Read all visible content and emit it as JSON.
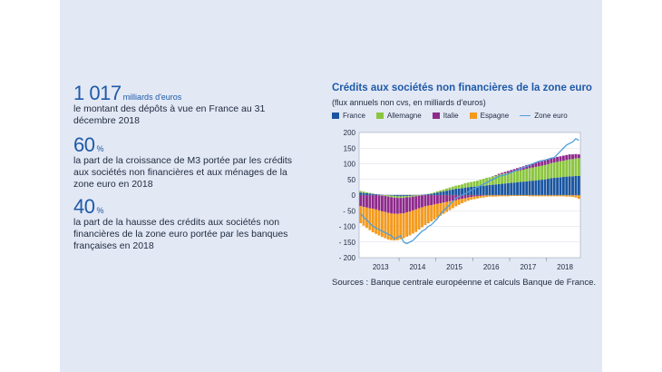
{
  "stats": [
    {
      "big": "1 017",
      "unit": "milliards d'euros",
      "desc": "le montant des dépôts à vue en France au 31 décembre 2018"
    },
    {
      "big": "60",
      "unit": "%",
      "desc": "la part de la croissance de M3 portée par les crédits aux sociétés non financières et aux ménages de la zone euro en 2018"
    },
    {
      "big": "40",
      "unit": "%",
      "desc": "la part de la hausse des crédits aux sociétés non financières de la zone euro portée par les banques françaises en 2018"
    }
  ],
  "source": "Sources : Banque centrale européenne et calculs Banque de France.",
  "colors": {
    "France": "#1a56a0",
    "Allemagne": "#8bc53f",
    "Italie": "#8e2a8c",
    "Espagne": "#f39a1e",
    "Zone euro": "#4f9fd9"
  },
  "chart_data": {
    "type": "bar",
    "title": "Crédits aux sociétés non financières de la zone euro",
    "subtitle": "(flux annuels non cvs, en milliards d'euros)",
    "ylim": [
      -200,
      200
    ],
    "yticks": [
      "200",
      "150",
      "100",
      "50",
      "0",
      "- 50",
      "- 100",
      "- 150",
      "- 200"
    ],
    "xticks": [
      "2013",
      "2014",
      "2015",
      "2016",
      "2017",
      "2018"
    ],
    "start": "2012-12",
    "legend": [
      "France",
      "Allemagne",
      "Italie",
      "Espagne",
      "Zone euro"
    ],
    "series": [
      {
        "name": "France",
        "values": [
          8,
          7,
          6,
          5,
          4,
          3,
          2,
          1,
          0,
          -1,
          -2,
          -3,
          -4,
          -4,
          -4,
          -3,
          -3,
          -2,
          -1,
          0,
          1,
          2,
          3,
          4,
          6,
          8,
          10,
          12,
          14,
          16,
          18,
          20,
          21,
          22,
          24,
          25,
          26,
          27,
          28,
          29,
          30,
          31,
          32,
          33,
          34,
          35,
          36,
          37,
          38,
          39,
          40,
          41,
          42,
          43,
          44,
          45,
          46,
          47,
          48,
          49,
          50,
          52,
          54,
          55,
          56,
          57,
          58,
          59,
          60,
          60,
          61,
          61
        ]
      },
      {
        "name": "Allemagne",
        "values": [
          5,
          4,
          3,
          2,
          1,
          0,
          -1,
          -2,
          -3,
          -4,
          -5,
          -5,
          -5,
          -5,
          -5,
          -4,
          -4,
          -3,
          -3,
          -2,
          -1,
          0,
          1,
          2,
          3,
          4,
          5,
          6,
          7,
          8,
          9,
          10,
          11,
          12,
          14,
          15,
          16,
          17,
          18,
          20,
          22,
          24,
          25,
          26,
          28,
          30,
          31,
          32,
          33,
          34,
          35,
          36,
          37,
          38,
          40,
          41,
          42,
          43,
          44,
          45,
          46,
          47,
          48,
          49,
          50,
          51,
          52,
          53,
          54,
          55,
          56,
          57
        ]
      },
      {
        "name": "Italie",
        "values": [
          -35,
          -38,
          -40,
          -42,
          -44,
          -46,
          -48,
          -50,
          -51,
          -52,
          -52,
          -52,
          -51,
          -50,
          -49,
          -48,
          -46,
          -44,
          -42,
          -40,
          -38,
          -36,
          -34,
          -32,
          -30,
          -28,
          -26,
          -24,
          -22,
          -20,
          -18,
          -16,
          -14,
          -12,
          -10,
          -8,
          -6,
          -5,
          -4,
          -3,
          -2,
          -1,
          0,
          1,
          2,
          3,
          4,
          5,
          6,
          7,
          8,
          9,
          10,
          11,
          12,
          12,
          13,
          13,
          14,
          14,
          15,
          15,
          15,
          15,
          16,
          16,
          16,
          16,
          16,
          15,
          14,
          12
        ]
      },
      {
        "name": "Espagne",
        "values": [
          -55,
          -60,
          -65,
          -70,
          -75,
          -78,
          -80,
          -82,
          -84,
          -85,
          -85,
          -85,
          -84,
          -82,
          -80,
          -78,
          -76,
          -74,
          -72,
          -68,
          -64,
          -60,
          -56,
          -52,
          -48,
          -44,
          -40,
          -36,
          -32,
          -28,
          -24,
          -20,
          -17,
          -14,
          -12,
          -10,
          -9,
          -8,
          -7,
          -6,
          -6,
          -5,
          -5,
          -5,
          -5,
          -4,
          -4,
          -4,
          -4,
          -3,
          -3,
          -3,
          -3,
          -3,
          -3,
          -4,
          -4,
          -4,
          -4,
          -4,
          -4,
          -4,
          -4,
          -4,
          -4,
          -4,
          -4,
          -5,
          -5,
          -6,
          -8,
          -12
        ]
      },
      {
        "name": "Zone euro",
        "values": [
          -60,
          -70,
          -80,
          -90,
          -100,
          -105,
          -110,
          -115,
          -120,
          -125,
          -130,
          -140,
          -135,
          -130,
          -150,
          -155,
          -150,
          -145,
          -135,
          -125,
          -115,
          -110,
          -100,
          -95,
          -85,
          -75,
          -60,
          -50,
          -40,
          -30,
          -20,
          -10,
          -5,
          0,
          5,
          10,
          15,
          20,
          25,
          30,
          35,
          40,
          45,
          50,
          55,
          60,
          62,
          64,
          68,
          72,
          76,
          80,
          84,
          88,
          92,
          96,
          100,
          104,
          108,
          110,
          112,
          115,
          118,
          120,
          130,
          140,
          150,
          160,
          165,
          170,
          180,
          175
        ]
      }
    ]
  }
}
